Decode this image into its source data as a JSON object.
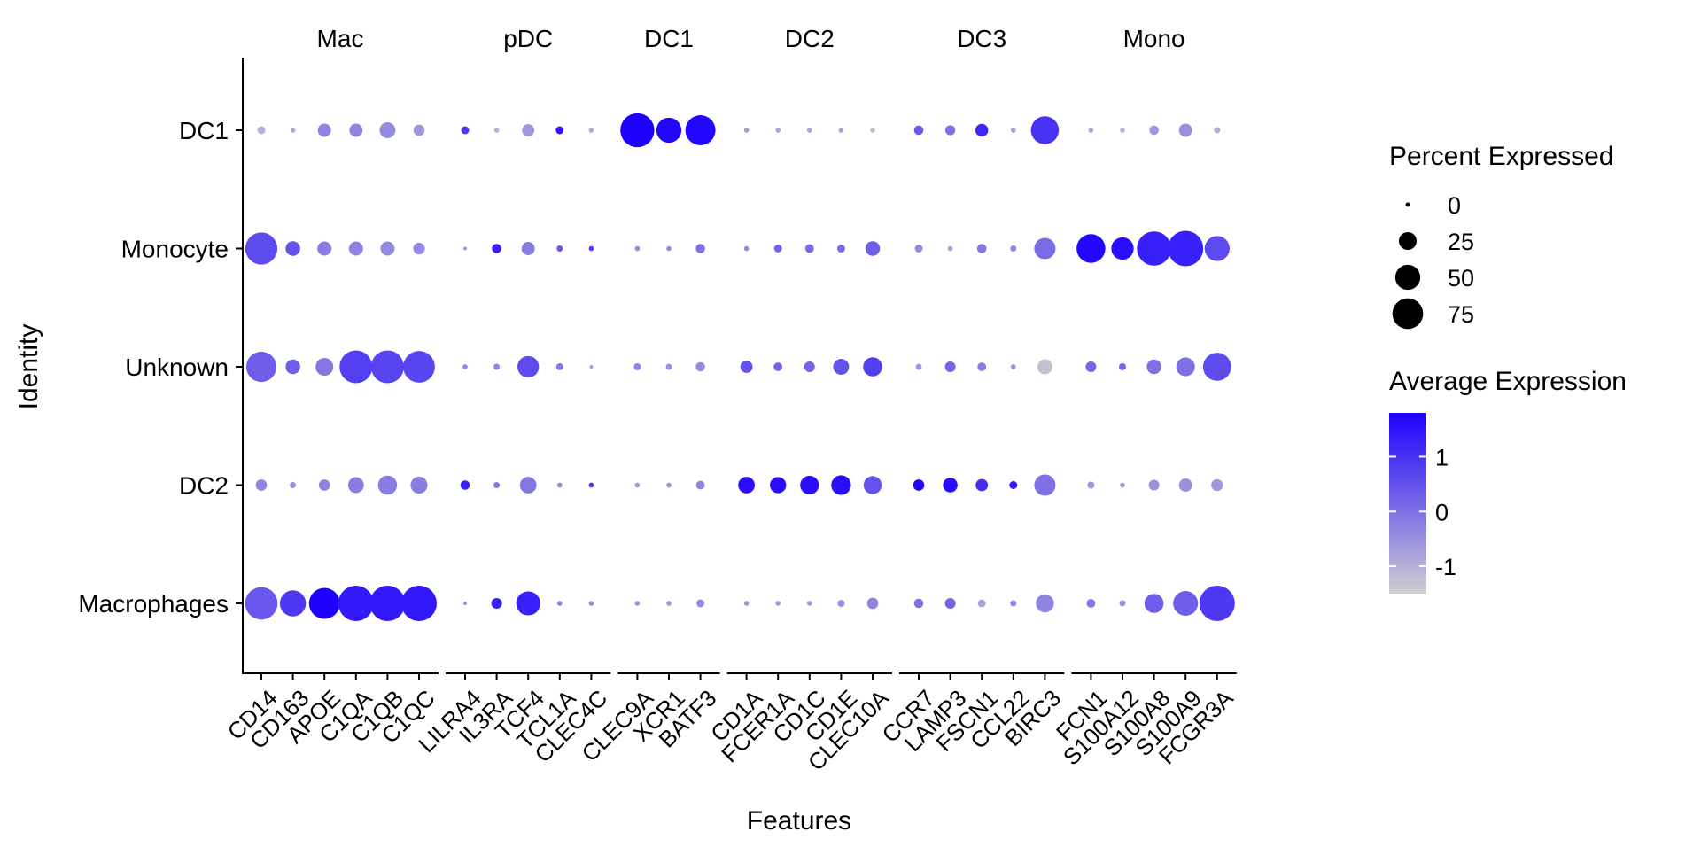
{
  "chart_data": {
    "type": "dot",
    "title": "",
    "xlabel": "Features",
    "ylabel": "Identity",
    "groups": [
      {
        "name": "Mac",
        "genes": [
          "CD14",
          "CD163",
          "APOE",
          "C1QA",
          "C1QB",
          "C1QC"
        ]
      },
      {
        "name": "pDC",
        "genes": [
          "LILRA4",
          "IL3RA",
          "TCF4",
          "TCL1A",
          "CLEC4C"
        ]
      },
      {
        "name": "DC1",
        "genes": [
          "CLEC9A",
          "XCR1",
          "BATF3"
        ]
      },
      {
        "name": "DC2",
        "genes": [
          "CD1A",
          "FCER1A",
          "CD1C",
          "CD1E",
          "CLEC10A"
        ]
      },
      {
        "name": "DC3",
        "genes": [
          "CCR7",
          "LAMP3",
          "FSCN1",
          "CCL22",
          "BIRC3"
        ]
      },
      {
        "name": "Mono",
        "genes": [
          "FCN1",
          "S100A12",
          "S100A8",
          "S100A9",
          "FCGR3A"
        ]
      }
    ],
    "identities": [
      "DC1",
      "Monocyte",
      "Unknown",
      "DC2",
      "Macrophages"
    ],
    "genes": [
      "CD14",
      "CD163",
      "APOE",
      "C1QA",
      "C1QB",
      "C1QC",
      "LILRA4",
      "IL3RA",
      "TCF4",
      "TCL1A",
      "CLEC4C",
      "CLEC9A",
      "XCR1",
      "BATF3",
      "CD1A",
      "FCER1A",
      "CD1C",
      "CD1E",
      "CLEC10A",
      "CCR7",
      "LAMP3",
      "FSCN1",
      "CCL22",
      "BIRC3",
      "FCN1",
      "S100A12",
      "S100A8",
      "S100A9",
      "FCGR3A"
    ],
    "percent_expressed": {
      "DC1": [
        5,
        2,
        14,
        14,
        20,
        10,
        5,
        2,
        12,
        5,
        2,
        92,
        50,
        72,
        2,
        2,
        2,
        2,
        2,
        7,
        8,
        13,
        2,
        62,
        2,
        2,
        7,
        14,
        3
      ],
      "Monocyte": [
        82,
        17,
        16,
        16,
        16,
        11,
        1,
        7,
        14,
        3,
        2,
        2,
        2,
        7,
        2,
        5,
        6,
        5,
        17,
        5,
        2,
        7,
        3,
        36,
        66,
        40,
        93,
        100,
        50
      ],
      "Unknown": [
        73,
        17,
        25,
        86,
        86,
        80,
        2,
        3,
        37,
        4,
        1,
        4,
        3,
        7,
        12,
        6,
        9,
        20,
        29,
        3,
        9,
        6,
        2,
        18,
        9,
        4,
        17,
        28,
        63
      ],
      "DC2": [
        10,
        3,
        10,
        20,
        29,
        23,
        7,
        3,
        22,
        2,
        2,
        2,
        2,
        6,
        22,
        21,
        28,
        31,
        26,
        10,
        17,
        12,
        5,
        36,
        4,
        2,
        9,
        14,
        11
      ],
      "Macrophages": [
        84,
        54,
        76,
        100,
        100,
        100,
        1,
        9,
        46,
        2,
        2,
        2,
        2,
        5,
        2,
        2,
        2,
        4,
        10,
        7,
        9,
        5,
        3,
        26,
        6,
        3,
        29,
        49,
        100
      ]
    },
    "avg_expression": {
      "DC1": [
        -1.0,
        -0.9,
        -0.3,
        -0.3,
        -0.4,
        -0.6,
        0.9,
        -1.0,
        -0.6,
        1.5,
        -0.9,
        1.8,
        1.7,
        1.7,
        -0.7,
        -0.8,
        -0.8,
        -0.8,
        -1.2,
        0.4,
        0.0,
        1.2,
        -0.7,
        1.0,
        -0.8,
        -1.0,
        -0.6,
        -0.5,
        -0.9
      ],
      "Monocyte": [
        0.6,
        0.5,
        -0.2,
        -0.3,
        -0.4,
        -0.4,
        -0.6,
        1.3,
        -0.2,
        0.4,
        0.8,
        -0.4,
        -0.4,
        0.0,
        -0.4,
        0.2,
        0.1,
        0.1,
        0.3,
        -0.4,
        -0.7,
        -0.1,
        -0.3,
        0.1,
        1.7,
        1.6,
        1.3,
        1.3,
        0.6
      ],
      "Unknown": [
        0.3,
        0.3,
        -0.1,
        0.8,
        0.7,
        0.7,
        -0.4,
        -0.3,
        0.6,
        -0.1,
        -0.7,
        -0.3,
        -0.5,
        -0.4,
        0.5,
        0.2,
        0.2,
        0.5,
        0.8,
        -0.6,
        0.2,
        -0.2,
        -0.5,
        -1.3,
        0.2,
        0.2,
        0.0,
        0.0,
        0.6
      ],
      "DC2": [
        -0.3,
        -0.5,
        -0.3,
        -0.2,
        -0.2,
        -0.2,
        1.3,
        -0.1,
        -0.1,
        -0.4,
        1.0,
        -0.6,
        -0.6,
        -0.3,
        1.6,
        1.6,
        1.6,
        1.6,
        0.5,
        1.7,
        1.6,
        1.1,
        1.4,
        0.0,
        -0.6,
        -0.7,
        -0.5,
        -0.5,
        -0.6
      ],
      "Macrophages": [
        0.4,
        0.9,
        1.8,
        1.4,
        1.4,
        1.4,
        -0.5,
        1.3,
        1.3,
        -0.3,
        -0.4,
        -0.6,
        -0.6,
        -0.4,
        -0.6,
        -0.6,
        -0.6,
        -0.5,
        -0.3,
        0.0,
        0.2,
        -0.8,
        -0.3,
        -0.3,
        -0.1,
        -0.5,
        0.3,
        0.3,
        0.9
      ]
    },
    "size_legend": {
      "title": "Percent Expressed",
      "breaks": [
        0,
        25,
        50,
        75
      ]
    },
    "color_legend": {
      "title": "Average Expression",
      "breaks": [
        1,
        0,
        -1
      ],
      "range": [
        -1.5,
        1.8
      ],
      "low_color": "#cfcfcf",
      "high_color": "#1e00ff"
    }
  }
}
